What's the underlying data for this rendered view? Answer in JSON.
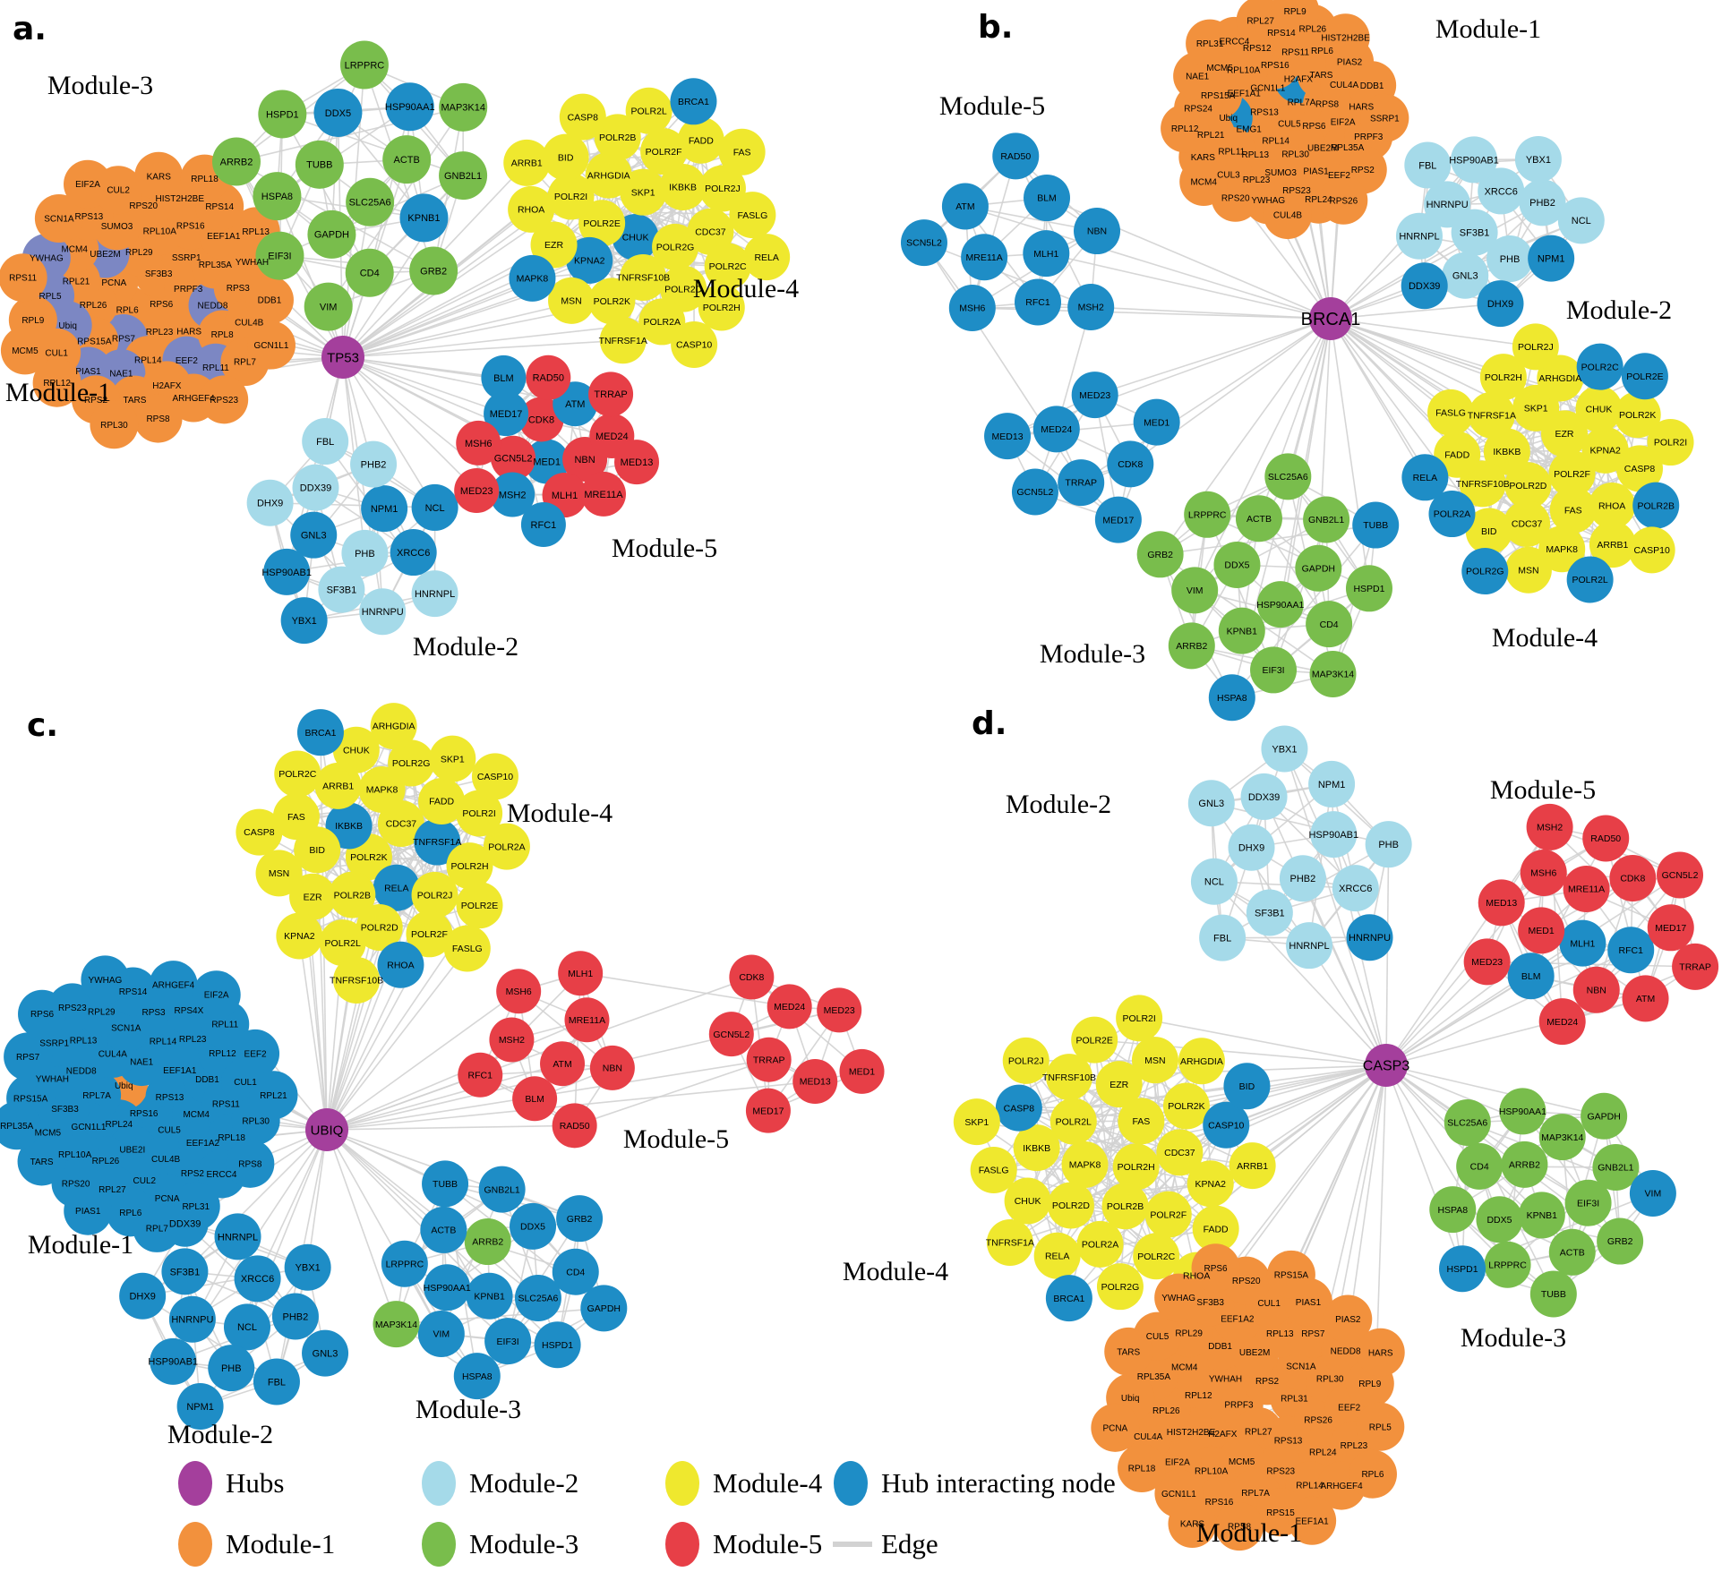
{
  "palette": {
    "hub": "#A43F9C",
    "m1": "#F2913D",
    "m2": "#A5DAE9",
    "m3": "#79BD4C",
    "m4": "#EFE82E",
    "m5": "#E73F47",
    "hi": "#1E8DC6",
    "slate": "#7C87C3",
    "edge": "#D2D2D2",
    "text": "#000000"
  },
  "legend": {
    "items": [
      {
        "label": "Hubs",
        "color": "hub"
      },
      {
        "label": "Module-1",
        "color": "m1"
      },
      {
        "label": "Module-2",
        "color": "m2"
      },
      {
        "label": "Module-3",
        "color": "m3"
      },
      {
        "label": "Module-4",
        "color": "m4"
      },
      {
        "label": "Module-5",
        "color": "m5"
      },
      {
        "label": "Hub interacting node",
        "color": "hi"
      },
      {
        "label": "Edge",
        "color": "edge",
        "type": "line"
      }
    ]
  },
  "panels": {
    "a": {
      "letter": "a.",
      "hub": {
        "label": "TP53"
      },
      "modules": {
        "1": {
          "title": "Module-1",
          "default_color": "m1",
          "nodes": [
            "RPS6",
            "RPL6",
            "SF3B3",
            "RPL23",
            "PCNA",
            "PRPF3",
            {
              "label": "RPS7",
              "color": "slate"
            },
            "RPL29",
            "HARS",
            "RPL26",
            "SSRP1",
            "RPL14",
            {
              "label": "UBE2M",
              "color": "slate"
            },
            {
              "label": "NEDD8",
              "color": "slate"
            },
            "RPS15A",
            "RPL10A",
            {
              "label": "EEF2",
              "color": "slate"
            },
            "RPL21",
            "RPL35A",
            {
              "label": "NAE1",
              "color": "slate"
            },
            "SUMO3",
            "RPL8",
            {
              "label": "Ubiq",
              "color": "slate"
            },
            "RPS16",
            "H2AFX",
            "MCM4",
            "RPS3",
            {
              "label": "PIAS1",
              "color": "slate"
            },
            "RPS20",
            {
              "label": "RPL11",
              "color": "slate"
            },
            {
              "label": "RPL5",
              "color": "slate"
            },
            "EEF1A1",
            "TARS",
            "RPS13",
            "CUL4B",
            "CUL1",
            "HIST2H2BE",
            "ARHGEF4",
            {
              "label": "YWHAG",
              "color": "slate"
            },
            "YWHAH",
            "RPS2",
            "CUL2",
            "RPL7",
            "RPL9",
            "RPS14",
            "RPS8",
            "SCN1A",
            "DDB1",
            "RPL12",
            "KARS",
            "RPS23",
            "RPS11",
            "RPL13",
            "RPL30",
            "EIF2A",
            "GCN1L1",
            "MCM5",
            "RPL18"
          ]
        },
        "2": {
          "title": "Module-2",
          "default_color": "m2",
          "nodes": [
            "PHB",
            {
              "label": "GNL3",
              "color": "hi"
            },
            {
              "label": "NPM1",
              "color": "hi"
            },
            "SF3B1",
            "DDX39",
            {
              "label": "XRCC6",
              "color": "hi"
            },
            {
              "label": "HSP90AB1",
              "color": "hi"
            },
            "PHB2",
            "HNRNPU",
            "DHX9",
            {
              "label": "NCL",
              "color": "hi"
            },
            {
              "label": "YBX1",
              "color": "hi"
            },
            "FBL",
            "HNRNPL"
          ]
        },
        "3": {
          "title": "Module-3",
          "default_color": "m3",
          "nodes": [
            "SLC25A6",
            "TUBB",
            "ACTB",
            "GAPDH",
            {
              "label": "DDX5",
              "color": "hi"
            },
            {
              "label": "KPNB1",
              "color": "hi"
            },
            "HSPA8",
            {
              "label": "HSP90AA1",
              "color": "hi"
            },
            "CD4",
            "HSPD1",
            "GNB2L1",
            "EIF3I",
            "LRPPRC",
            "GRB2",
            "ARRB2",
            "MAP3K14",
            "VIM"
          ]
        },
        "4": {
          "title": "Module-4",
          "default_color": "m4",
          "nodes": [
            {
              "label": "CHUK",
              "color": "hi"
            },
            "SKP1",
            "POLR2G",
            "POLR2E",
            "IKBKB",
            "TNFRSF10B",
            "ARHGDIA",
            "CDC37",
            {
              "label": "KPNA2",
              "color": "hi"
            },
            "POLR2F",
            "POLR2D",
            "POLR2I",
            "POLR2J",
            "POLR2K",
            "POLR2B",
            "POLR2C",
            "EZR",
            "FADD",
            "POLR2A",
            "BID",
            "FASLG",
            "MSN",
            "POLR2L",
            "POLR2H",
            "RHOA",
            "FAS",
            "TNFRSF1A",
            "CASP8",
            "RELA",
            {
              "label": "MAPK8",
              "color": "hi"
            },
            {
              "label": "BRCA1",
              "color": "hi"
            },
            "CASP10",
            "ARRB1"
          ]
        },
        "5": {
          "title": "Module-5",
          "default_color": "m5",
          "nodes": [
            {
              "label": "MED1",
              "color": "hi"
            },
            "CDK8",
            "NBN",
            "GCN5L2",
            {
              "label": "ATM",
              "color": "hi"
            },
            "MLH1",
            {
              "label": "MED17",
              "color": "hi"
            },
            "MED24",
            {
              "label": "MSH2",
              "color": "hi"
            },
            "RAD50",
            "MRE11A",
            "MSH6",
            "TRRAP",
            {
              "label": "RFC1",
              "color": "hi"
            },
            {
              "label": "BLM",
              "color": "hi"
            },
            "MED13",
            "MED23"
          ]
        }
      }
    },
    "b": {
      "letter": "b.",
      "hub": {
        "label": "BRCA1"
      },
      "modules": {
        "1": {
          "title": "Module-1",
          "default_color": "m1",
          "nodes": [
            "CUL5",
            "RPS13",
            "RPL7A",
            "RPL14",
            "GCN1L1",
            "RPS6",
            "EMG1",
            {
              "label": "H2AFX",
              "color": "hi"
            },
            "RPL30",
            "EEF1A1",
            "RPS8",
            "RPL13",
            "RPS16",
            "UBE2M",
            {
              "label": "Ubiq",
              "color": "hi"
            },
            "TARS",
            "SUMO3",
            "RPL10A",
            "EIF2A",
            "RPL11",
            "RPS11",
            "PIAS1",
            "RPS15A",
            "CUL4A",
            "RPL23",
            "RPS12",
            "RPL35A",
            "RPL21",
            "RPL6",
            "RPS23",
            "MCM5",
            "HARS",
            "CUL3",
            "RPS14",
            "EEF2",
            "RPS24",
            "PIAS2",
            "YWHAG",
            "ERCC4",
            "PRPF3",
            "KARS",
            "RPL26",
            "RPL24",
            "NAE1",
            "DDB1",
            "RPS20",
            "RPL27",
            "RPS2",
            "RPL12",
            "HIST2H2BE",
            "CUL4B",
            "RPL31",
            "SSRP1",
            "MCM4",
            "RPL9",
            "RPS26"
          ]
        },
        "2": {
          "title": "Module-2",
          "default_color": "m2",
          "nodes": [
            "SF3B1",
            "XRCC6",
            "PHB",
            "HNRNPU",
            "PHB2",
            "GNL3",
            "HSP90AB1",
            {
              "label": "NPM1",
              "color": "hi"
            },
            "HNRNPL",
            "YBX1",
            {
              "label": "DHX9",
              "color": "hi"
            },
            "FBL",
            "NCL",
            {
              "label": "DDX39",
              "color": "hi"
            }
          ]
        },
        "3": {
          "title": "Module-3",
          "default_color": "m3",
          "nodes": [
            "HSP90AA1",
            "DDX5",
            "GAPDH",
            "KPNB1",
            "ACTB",
            "CD4",
            "VIM",
            "GNB2L1",
            "EIF3I",
            "LRPPRC",
            "HSPD1",
            "ARRB2",
            "SLC25A6",
            "MAP3K14",
            "GRB2",
            {
              "label": "TUBB",
              "color": "hi"
            },
            {
              "label": "HSPA8",
              "color": "hi"
            }
          ]
        },
        "4": {
          "title": "Module-4",
          "default_color": "m4",
          "nodes": [
            "POLR2F",
            "POLR2D",
            "EZR",
            "FAS",
            "IKBKB",
            "KPNA2",
            "CDC37",
            "SKP1",
            "RHOA",
            "TNFRSF10B",
            "CHUK",
            "MAPK8",
            "TNFRSF1A",
            "CASP8",
            "BID",
            "ARHGDIA",
            "ARRB1",
            "FADD",
            "POLR2K",
            "MSN",
            "POLR2H",
            {
              "label": "POLR2B",
              "color": "hi"
            },
            {
              "label": "POLR2A",
              "color": "hi"
            },
            {
              "label": "POLR2C",
              "color": "hi"
            },
            {
              "label": "POLR2L",
              "color": "hi"
            },
            "FASLG",
            "POLR2I",
            {
              "label": "POLR2G",
              "color": "hi"
            },
            "POLR2J",
            "CASP10",
            {
              "label": "RELA",
              "color": "hi"
            },
            {
              "label": "POLR2E",
              "color": "hi"
            }
          ]
        },
        "5": {
          "title": "Module-5",
          "default_color": "hi",
          "nodes": [
            "MLH1",
            "MRE11A",
            "BLM",
            "RFC1",
            "ATM",
            "NBN",
            "MSH6",
            "RAD50",
            "MSH2",
            "SCN5L2",
            "TRRAP",
            "MED24",
            "CDK8",
            "GCN5L2",
            "MED23",
            "MED17",
            "MED13",
            "MED1"
          ]
        }
      }
    },
    "c": {
      "letter": "c.",
      "hub": {
        "label": "UBIQ"
      },
      "modules": {
        "1": {
          "title": "Module-1",
          "default_color": "hi",
          "nodes": [
            "RPS16",
            {
              "label": "Ubiq",
              "color": "m1"
            },
            "RPS13",
            "RPL24",
            "NAE1",
            "CUL5",
            "RPL7A",
            "EEF1A1",
            "UBE2I",
            "CUL4A",
            "MCM4",
            "GCN1L1",
            "RPL14",
            "CUL4B",
            "NEDD8",
            "DDB1",
            "RPL26",
            "SCN1A",
            "EEF1A2",
            "SF3B3",
            "RPL23",
            "CUL2",
            "RPL13",
            "RPS11",
            "RPL10A",
            "RPS3",
            "RPS2",
            "YWHAH",
            "RPL12",
            "RPL27",
            "RPL29",
            "RPL18",
            "MCM5",
            "RPS4X",
            "PCNA",
            "SSRP1",
            "CUL1",
            "RPS20",
            "RPS14",
            "ERCC4",
            "RPS15A",
            "RPL11",
            "RPL6",
            "RPS23",
            "RPL30",
            "TARS",
            "ARHGEF4",
            "RPL31",
            "RPS7",
            "EEF2",
            "PIAS1",
            "YWHAG",
            "RPS8",
            "RPL35A",
            "EIF2A",
            "RPL7",
            "RPS6",
            "RPL21"
          ]
        },
        "2": {
          "title": "Module-2",
          "default_color": "hi",
          "nodes": [
            "NCL",
            "HNRNPU",
            "XRCC6",
            "PHB",
            "SF3B1",
            "PHB2",
            "HSP90AB1",
            "HNRNPL",
            "FBL",
            "DHX9",
            "YBX1",
            "NPM1",
            "DDX39",
            "GNL3"
          ]
        },
        "3": {
          "title": "Module-3",
          "default_color": "hi",
          "nodes": [
            "KPNB1",
            {
              "label": "ARRB2",
              "color": "m3"
            },
            "SLC25A6",
            "HSP90AA1",
            "DDX5",
            "EIF3I",
            "ACTB",
            "CD4",
            "VIM",
            "GNB2L1",
            "HSPD1",
            "LRPPRC",
            "GRB2",
            "HSPA8",
            "TUBB",
            "GAPDH",
            {
              "label": "MAP3K14",
              "color": "m3"
            }
          ]
        },
        "4": {
          "title": "Module-4",
          "default_color": "m4",
          "nodes": [
            "POLR2K",
            "CDC37",
            {
              "label": "RELA",
              "color": "hi"
            },
            {
              "label": "IKBKB",
              "color": "hi"
            },
            {
              "label": "TNFRSF1A",
              "color": "hi"
            },
            "POLR2B",
            "MAPK8",
            "POLR2J",
            "BID",
            "FADD",
            "POLR2D",
            "ARRB1",
            "POLR2H",
            "EZR",
            "POLR2G",
            "POLR2F",
            "FAS",
            "POLR2I",
            "POLR2L",
            "CHUK",
            "POLR2E",
            "MSN",
            "SKP1",
            {
              "label": "RHOA",
              "color": "hi"
            },
            "POLR2C",
            "POLR2A",
            "KPNA2",
            "ARHGDIA",
            "FASLG",
            "CASP8",
            "CASP10",
            "TNFRSF10B",
            {
              "label": "BRCA1",
              "color": "hi"
            }
          ]
        },
        "5": {
          "title": "Module-5",
          "default_color": "m5",
          "nodes": [
            "ATM",
            "MSH2",
            "MRE11A",
            "BLM",
            "MSH6",
            "NBN",
            "RFC1",
            "MLH1",
            "RAD50",
            "TRRAP",
            "MED24",
            "MED13",
            "GCN5L2",
            "MED23",
            "MED17",
            "CDK8",
            "MED1"
          ]
        }
      }
    },
    "d": {
      "letter": "d.",
      "hub": {
        "label": "CASP3"
      },
      "modules": {
        "1": {
          "title": "Module-1",
          "default_color": "m1",
          "nodes": [
            "PRPF3",
            "RPS2",
            "RPL27",
            "YWHAH",
            "RPL31",
            "H2AFX",
            "UBE2M",
            "RPS13",
            "RPL12",
            "SCN1A",
            "MCM5",
            "DDB1",
            "RPS26",
            "HIST2H2BE",
            "RPL13",
            "RPS23",
            "MCM4",
            "RPL30",
            "RPL10A",
            "EEF1A2",
            "RPL24",
            "RPL26",
            "RPS7",
            "RPL7A",
            "RPL29",
            "EEF2",
            "EIF2A",
            "CUL1",
            "RPL14",
            "RPL35A",
            "NEDD8",
            "RPS16",
            "SF3B3",
            "RPL23",
            "CUL4A",
            "PIAS1",
            "RPS15",
            "CUL5",
            "RPL9",
            "GCN1L1",
            "RPS20",
            "ARHGEF4",
            "Ubiq",
            "PIAS2",
            "RPS8",
            "YWHAG",
            "RPL5",
            "RPL18",
            "RPS15A",
            "EEF1A1",
            "TARS",
            "HARS",
            "KARS",
            "RPS6",
            "RPL6",
            "PCNA"
          ]
        },
        "2": {
          "title": "Module-2",
          "default_color": "m2",
          "nodes": [
            "PHB2",
            "DHX9",
            "HSP90AB1",
            "SF3B1",
            "DDX39",
            "XRCC6",
            "NCL",
            "NPM1",
            "HNRNPL",
            "GNL3",
            "PHB",
            "FBL",
            "YBX1",
            {
              "label": "HNRNPU",
              "color": "hi"
            }
          ]
        },
        "3": {
          "title": "Module-3",
          "default_color": "m3",
          "nodes": [
            "KPNB1",
            "ARRB2",
            "EIF3I",
            "DDX5",
            "MAP3K14",
            "ACTB",
            "CD4",
            "GNB2L1",
            "LRPPRC",
            "HSP90AA1",
            "GRB2",
            "HSPA8",
            "GAPDH",
            "TUBB",
            "SLC25A6",
            {
              "label": "VIM",
              "color": "hi"
            },
            {
              "label": "HSPD1",
              "color": "hi"
            }
          ]
        },
        "4": {
          "title": "Module-4",
          "default_color": "m4",
          "nodes": [
            "POLR2H",
            "MAPK8",
            "FAS",
            "POLR2B",
            "POLR2L",
            "CDC37",
            "POLR2D",
            "EZR",
            "POLR2F",
            "IKBKB",
            "POLR2K",
            "POLR2A",
            "TNFRSF10B",
            "KPNA2",
            "CHUK",
            "MSN",
            "POLR2C",
            {
              "label": "CASP8",
              "color": "hi"
            },
            {
              "label": "CASP10",
              "color": "hi"
            },
            "RELA",
            "POLR2E",
            "FADD",
            "FASLG",
            "ARHGDIA",
            "POLR2G",
            "POLR2J",
            "ARRB1",
            "TNFRSF1A",
            "POLR2I",
            "RHOA",
            "SKP1",
            {
              "label": "BID",
              "color": "hi"
            },
            {
              "label": "BRCA1",
              "color": "hi"
            }
          ]
        },
        "5": {
          "title": "Module-5",
          "default_color": "m5",
          "nodes": [
            {
              "label": "MLH1",
              "color": "hi"
            },
            "MRE11A",
            {
              "label": "RFC1",
              "color": "hi"
            },
            "MED1",
            "CDK8",
            "NBN",
            "MSH6",
            "MED17",
            {
              "label": "BLM",
              "color": "hi"
            },
            "RAD50",
            "ATM",
            "MED13",
            "GCN5L2",
            "MED24",
            "MSH2",
            "TRRAP",
            "MED23"
          ]
        }
      }
    }
  }
}
